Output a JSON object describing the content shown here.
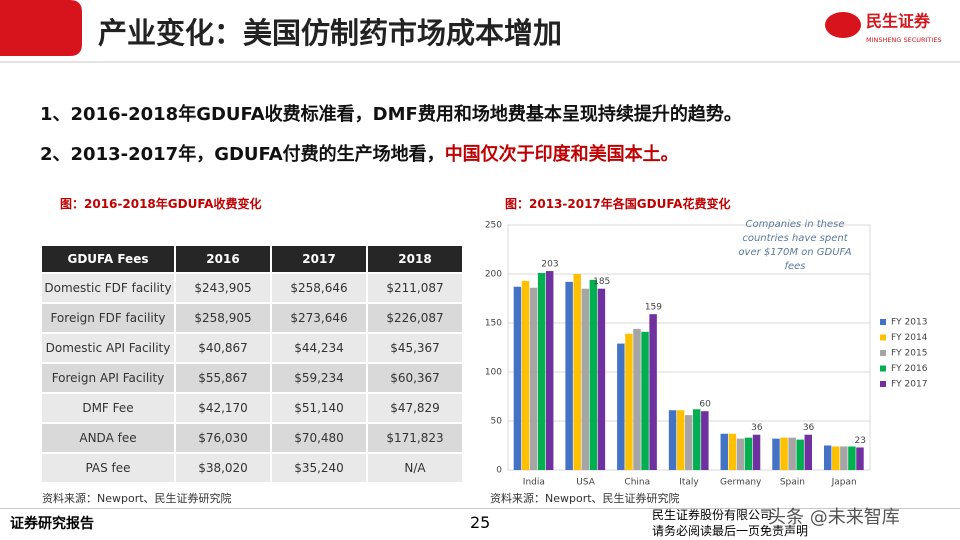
{
  "header": {
    "title": "产业变化：美国仿制药市场成本增加",
    "logo_name": "民生证券",
    "logo_sub": "MINSHENG SECURITIES"
  },
  "bullets": [
    [
      "1、2016-2018年GDUFA收费标准看，DMF费用和场地费基本呈现持续提升的趋势。"
    ],
    [
      "2、2013-2017年，GDUFA付费的生产场地看，",
      "中国仅次于印度和美国本土。"
    ]
  ],
  "table": {
    "caption": "图：2016-2018年GDUFA收费变化",
    "columns": [
      "GDUFA Fees",
      "2016",
      "2017",
      "2018"
    ],
    "rows": [
      [
        "Domestic FDF facility",
        "$243,905",
        "$258,646",
        "$211,087"
      ],
      [
        "Foreign FDF facility",
        "$258,905",
        "$273,646",
        "$226,087"
      ],
      [
        "Domestic API Facility",
        "$40,867",
        "$44,234",
        "$45,367"
      ],
      [
        "Foreign API Facility",
        "$55,867",
        "$59,234",
        "$60,367"
      ],
      [
        "DMF Fee",
        "$42,170",
        "$51,140",
        "$47,829"
      ],
      [
        "ANDA fee",
        "$76,030",
        "$70,480",
        "$171,823"
      ],
      [
        "PAS fee",
        "$38,020",
        "$35,240",
        "N/A"
      ]
    ],
    "source": "资料来源：Newport、民生证券研究院"
  },
  "chart_data": {
    "type": "bar",
    "title": "图：2013-2017年各国GDUFA花费变化",
    "annotation": [
      "Companies in these",
      "countries have spent",
      "over $170M on GDUFA",
      "fees"
    ],
    "categories": [
      "India",
      "USA",
      "China",
      "Italy",
      "Germany",
      "Spain",
      "Japan"
    ],
    "series": [
      {
        "name": "FY 2013",
        "color": "#4472c4",
        "values": [
          187,
          192,
          129,
          61,
          37,
          32,
          25
        ]
      },
      {
        "name": "FY 2014",
        "color": "#ffc000",
        "values": [
          193,
          200,
          139,
          61,
          37,
          33,
          24
        ]
      },
      {
        "name": "FY 2015",
        "color": "#a5a5a5",
        "values": [
          186,
          185,
          144,
          56,
          32,
          33,
          24
        ]
      },
      {
        "name": "FY 2016",
        "color": "#00b050",
        "values": [
          201,
          194,
          141,
          62,
          33,
          31,
          24
        ]
      },
      {
        "name": "FY 2017",
        "color": "#7030a0",
        "values": [
          203,
          185,
          159,
          60,
          36,
          36,
          23
        ],
        "data_labels": true
      }
    ],
    "ylim": [
      0,
      250
    ],
    "yticks": [
      0,
      50,
      100,
      150,
      200,
      250
    ],
    "grid": true,
    "legend": "right",
    "source": "资料来源：Newport、民生证券研究院"
  },
  "footer": {
    "left": "证券研究报告",
    "page": "25",
    "company": "民生证券股份有限公司",
    "disclaimer": "请务必阅读最后一页免责声明",
    "watermark": "头条 @未来智库"
  }
}
